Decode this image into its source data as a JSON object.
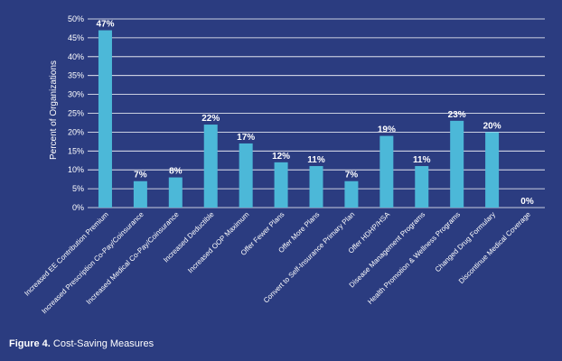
{
  "caption": {
    "figure_label": "Figure 4.",
    "title": "Cost-Saving Measures"
  },
  "colors": {
    "background": "#2b3c80",
    "bar": "#4cb8d8",
    "grid": "#ffffff",
    "text": "#ffffff"
  },
  "chart_data": {
    "type": "bar",
    "ylabel": "Percent of Organizations",
    "xlabel": "",
    "ylim": [
      0,
      50
    ],
    "yticks": [
      "0%",
      "5%",
      "10%",
      "15%",
      "20%",
      "25%",
      "30%",
      "35%",
      "40%",
      "45%",
      "50%"
    ],
    "grid": true,
    "categories": [
      "Increased EE Contribution Premium",
      "Increased Prescription Co-Pay/Coinsurance",
      "Increased Medical Co-Pay/Coinsurance",
      "Increased Deductible",
      "Increased OOP Maximum",
      "Offer Fewer Plans",
      "Offer More Plans",
      "Convert to Self-Insurance Primary Plan",
      "Offer HDHP/HSA",
      "Disease Management Programs",
      "Health Promotion & Wellness Programs",
      "Changed Drug Formulary",
      "Discontinue Medical Coverage"
    ],
    "values": [
      47,
      7,
      8,
      22,
      17,
      12,
      11,
      7,
      19,
      11,
      23,
      20,
      0
    ],
    "value_labels": [
      "47%",
      "7%",
      "8%",
      "22%",
      "17%",
      "12%",
      "11%",
      "7%",
      "19%",
      "11%",
      "23%",
      "20%",
      "0%"
    ]
  }
}
